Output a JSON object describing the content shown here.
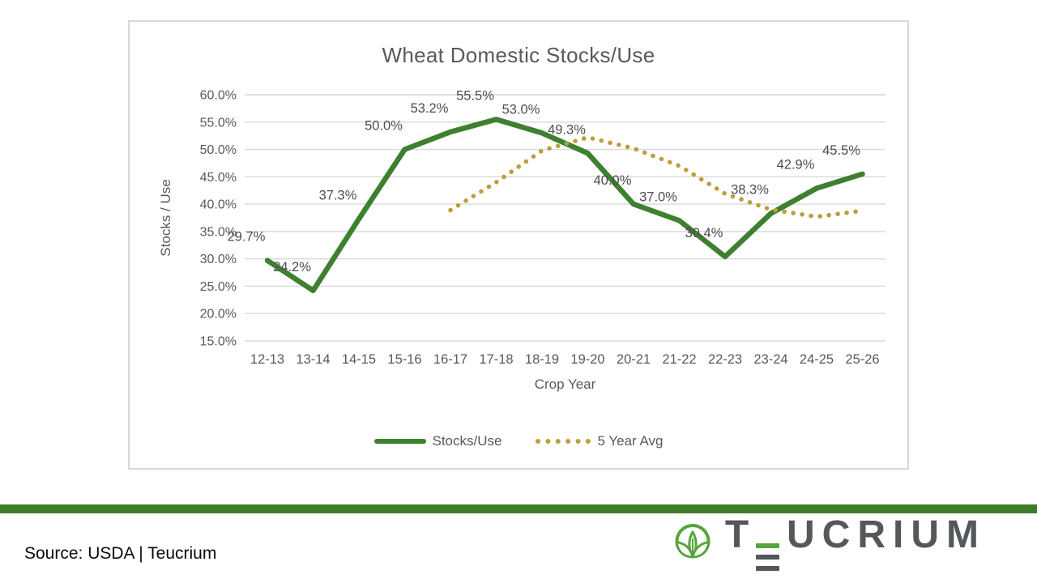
{
  "chart_data": {
    "type": "line",
    "title": "Wheat Domestic Stocks/Use",
    "xlabel": "Crop Year",
    "ylabel": "Stocks / Use",
    "categories": [
      "12-13",
      "13-14",
      "14-15",
      "15-16",
      "16-17",
      "17-18",
      "18-19",
      "19-20",
      "20-21",
      "21-22",
      "22-23",
      "23-24",
      "24-25",
      "25-26"
    ],
    "series": [
      {
        "name": "Stocks/Use",
        "color": "#3e8030",
        "style": "solid",
        "show_labels": true,
        "values": [
          29.7,
          24.2,
          37.3,
          50.0,
          53.2,
          55.5,
          53.0,
          49.3,
          40.0,
          37.0,
          30.4,
          38.3,
          42.9,
          45.5
        ],
        "labels": [
          "29.7%",
          "24.2%",
          "37.3%",
          "50.0%",
          "53.2%",
          "55.5%",
          "53.0%",
          "49.3%",
          "40.0%",
          "37.0%",
          "30.4%",
          "38.3%",
          "42.9%",
          "45.5%"
        ]
      },
      {
        "name": "5 Year Avg",
        "color": "#bd9e39",
        "style": "dotted",
        "show_labels": false,
        "values": [
          null,
          null,
          null,
          null,
          38.9,
          44.0,
          49.8,
          52.2,
          50.2,
          47.0,
          41.9,
          39.0,
          37.7,
          38.8
        ],
        "labels": []
      }
    ],
    "ylim": [
      15,
      60
    ],
    "y_tick_values": [
      60,
      55,
      50,
      45,
      40,
      35,
      30,
      25,
      20,
      15
    ],
    "y_tick_labels": [
      "60.0%",
      "55.0%",
      "50.0%",
      "45.0%",
      "40.0%",
      "35.0%",
      "30.0%",
      "25.0%",
      "20.0%",
      "15.0%"
    ],
    "grid": true,
    "legend_position": "bottom",
    "grid_color": "#d9d9d9",
    "tick_color": "#595959",
    "data_label_color": "#4d4d4d"
  },
  "legend": {
    "items": [
      {
        "label": "Stocks/Use"
      },
      {
        "label": "5 Year Avg"
      }
    ]
  },
  "footer": {
    "source": "Source: USDA | Teucrium",
    "bar_color": "#3d7b27"
  },
  "logo": {
    "wordmark": "TEUCRIUM",
    "green": "#56a53b",
    "gray": "#54585a"
  }
}
